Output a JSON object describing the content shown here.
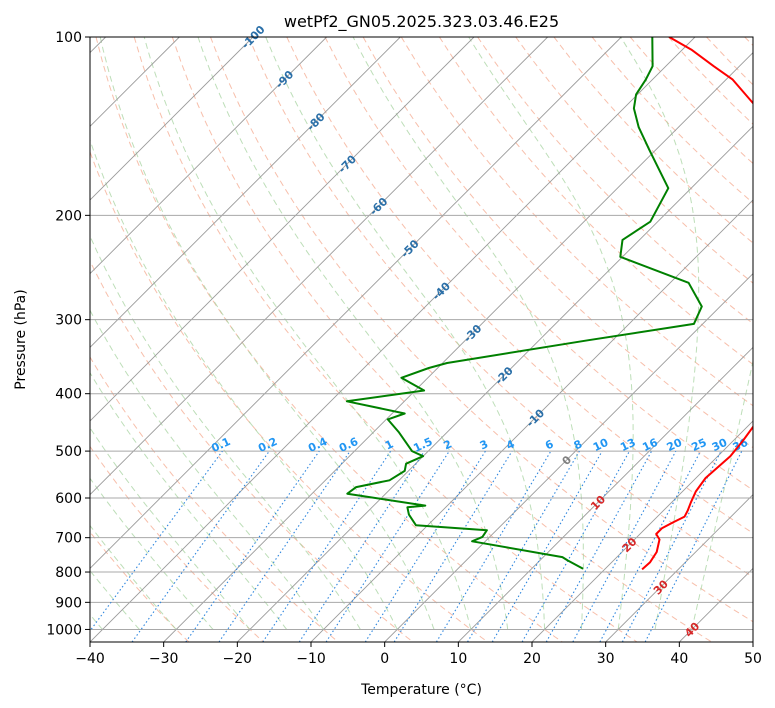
{
  "chart_data": {
    "type": "line",
    "subtype": "skew-t log-p",
    "title": "wetPf2_GN05.2025.323.03.46.E25",
    "xlabel": "Temperature (°C)",
    "ylabel": "Pressure (hPa)",
    "xlim": [
      -40,
      50
    ],
    "ylim": [
      1050,
      100
    ],
    "x_ticks": [
      "−40",
      "−30",
      "−20",
      "−10",
      "0",
      "10",
      "20",
      "30",
      "40",
      "50"
    ],
    "x_tick_values": [
      -40,
      -30,
      -20,
      -10,
      0,
      10,
      20,
      30,
      40,
      50
    ],
    "y_ticks": [
      "100",
      "200",
      "300",
      "400",
      "500",
      "600",
      "700",
      "800",
      "900",
      "1000"
    ],
    "y_tick_values": [
      100,
      200,
      300,
      400,
      500,
      600,
      700,
      800,
      900,
      1000
    ],
    "series": [
      {
        "name": "Temperature",
        "color": "#ff0000",
        "points": [
          [
            25.1,
            792
          ],
          [
            25.2,
            770
          ],
          [
            24.7,
            740
          ],
          [
            23.4,
            705
          ],
          [
            22.2,
            690
          ],
          [
            22.2,
            675
          ],
          [
            22.9,
            660
          ],
          [
            23.7,
            645
          ],
          [
            23.3,
            630
          ],
          [
            22.6,
            610
          ],
          [
            21.8,
            585
          ],
          [
            21.3,
            555
          ],
          [
            21.7,
            510
          ],
          [
            21.3,
            480
          ],
          [
            20.7,
            450
          ],
          [
            19.9,
            420
          ],
          [
            17.7,
            375
          ],
          [
            14.3,
            335
          ],
          [
            9.9,
            300
          ],
          [
            4.8,
            270
          ],
          [
            -0.8,
            240
          ],
          [
            -5.6,
            210
          ],
          [
            -11.4,
            180
          ],
          [
            -17.8,
            150
          ],
          [
            -22.8,
            130
          ],
          [
            -29.1,
            118
          ],
          [
            -33.5,
            112
          ],
          [
            -38.8,
            105
          ],
          [
            -43.5,
            100
          ]
        ]
      },
      {
        "name": "Dew point",
        "color": "#008000",
        "points": [
          [
            17,
            790
          ],
          [
            13.8,
            765
          ],
          [
            12.6,
            755
          ],
          [
            -1.8,
            710
          ],
          [
            -1.0,
            698
          ],
          [
            -1.3,
            680
          ],
          [
            -11.6,
            667
          ],
          [
            -14.0,
            640
          ],
          [
            -15.2,
            622
          ],
          [
            -13.0,
            618
          ],
          [
            -25.2,
            590
          ],
          [
            -24.9,
            575
          ],
          [
            -21.3,
            560
          ],
          [
            -20.5,
            540
          ],
          [
            -21.3,
            525
          ],
          [
            -20.0,
            510
          ],
          [
            -22.2,
            500
          ],
          [
            -26.5,
            465
          ],
          [
            -29.8,
            442
          ],
          [
            -28.3,
            432
          ],
          [
            -37.8,
            412
          ],
          [
            -28.8,
            395
          ],
          [
            -33.6,
            376
          ],
          [
            -31.2,
            362
          ],
          [
            -29.4,
            355
          ],
          [
            -13.4,
            325
          ],
          [
            -1.2,
            305
          ],
          [
            -2.5,
            285
          ],
          [
            -7.5,
            260
          ],
          [
            -20.3,
            235
          ],
          [
            -22.3,
            220
          ],
          [
            -21.0,
            205
          ],
          [
            -23.1,
            180
          ],
          [
            -30.9,
            155
          ],
          [
            -35.4,
            142
          ],
          [
            -38.6,
            132
          ],
          [
            -40.2,
            125
          ],
          [
            -40.9,
            118
          ],
          [
            -41.8,
            112
          ],
          [
            -45.8,
            100
          ]
        ]
      }
    ],
    "isotherm_labels": [
      "-100",
      "-90",
      "-80",
      "-70",
      "-60",
      "-50",
      "-40",
      "-30",
      "-20",
      "-10",
      "0",
      "10",
      "20",
      "30",
      "40"
    ],
    "isotherm_label_values": [
      -100,
      -90,
      -80,
      -70,
      -60,
      -50,
      -40,
      -30,
      -20,
      -10,
      0,
      10,
      20,
      30,
      40
    ],
    "mixing_ratio_labels": [
      "0.1",
      "0.2",
      "0.4",
      "0.6",
      "1",
      "1.5",
      "2",
      "3",
      "4",
      "6",
      "8",
      "10",
      "13",
      "16",
      "20",
      "25",
      "30",
      "36"
    ],
    "mixing_ratio_values": [
      0.1,
      0.2,
      0.4,
      0.6,
      1,
      1.5,
      2,
      3,
      4,
      6,
      8,
      10,
      13,
      16,
      20,
      25,
      30,
      36
    ],
    "grid": true,
    "legend": "none"
  }
}
